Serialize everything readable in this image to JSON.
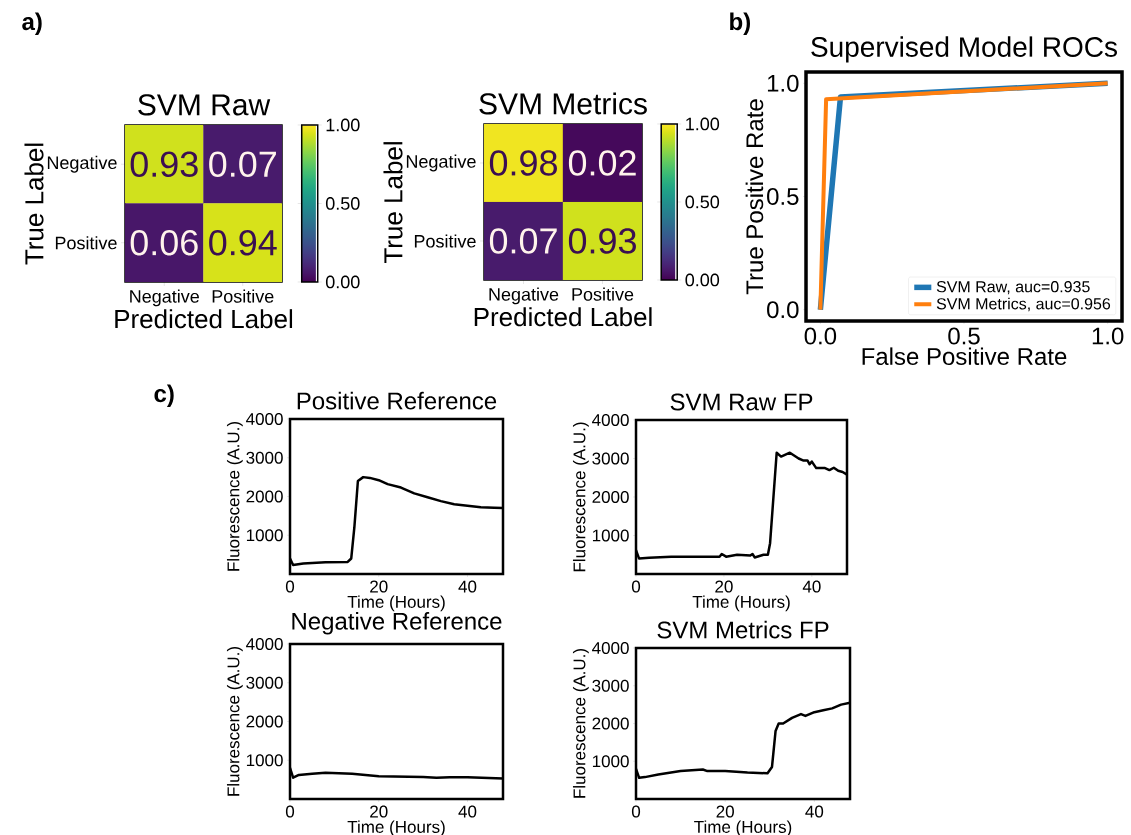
{
  "chart_data": [
    {
      "type": "heatmap",
      "title": "SVM Raw",
      "xlabel": "Predicted Label",
      "ylabel": "True Label",
      "categories": [
        "Negative",
        "Positive"
      ],
      "y_categories": [
        "Negative",
        "Positive"
      ],
      "cells": [
        [
          0.93,
          0.07
        ],
        [
          0.06,
          0.94
        ]
      ],
      "data_labels": true,
      "clim": [
        0,
        1
      ],
      "cticks": [
        {
          "value": 0,
          "label": "0.00"
        },
        {
          "value": 0.5,
          "label": "0.50"
        },
        {
          "value": 1,
          "label": "1.00"
        }
      ],
      "annotations": [
        "a)"
      ]
    },
    {
      "type": "heatmap",
      "title": "SVM Metrics",
      "xlabel": "Predicted Label",
      "ylabel": "True Label",
      "categories": [
        "Negative",
        "Positive"
      ],
      "y_categories": [
        "Negative",
        "Positive"
      ],
      "cells": [
        [
          0.98,
          0.02
        ],
        [
          0.07,
          0.93
        ]
      ],
      "data_labels": true,
      "clim": [
        0,
        1
      ],
      "cticks": [
        {
          "value": 0,
          "label": "0.00"
        },
        {
          "value": 0.5,
          "label": "0.50"
        },
        {
          "value": 1,
          "label": "1.00"
        }
      ]
    },
    {
      "type": "line",
      "title": "Supervised Model ROCs",
      "xlabel": "False Positive Rate",
      "ylabel": "True Positive Rate",
      "xlim": [
        -0.05,
        1.05
      ],
      "ylim": [
        -0.05,
        1.05
      ],
      "xticks": [
        {
          "value": 0,
          "label": "0.0"
        },
        {
          "value": 0.5,
          "label": "0.5"
        },
        {
          "value": 1,
          "label": "1.0"
        }
      ],
      "yticks": [
        {
          "value": 0,
          "label": "0.0"
        },
        {
          "value": 0.5,
          "label": "0.5"
        },
        {
          "value": 1,
          "label": "1.0"
        }
      ],
      "legend": "bottom right",
      "annotations": [
        "b)"
      ],
      "series": [
        {
          "name": "SVM Raw, auc=0.935",
          "color": "#1f77b4",
          "x": [
            0,
            0.07,
            1
          ],
          "values": [
            0,
            0.94,
            1
          ]
        },
        {
          "name": "SVM Metrics, auc=0.956",
          "color": "#ff7f0e",
          "x": [
            0,
            0.02,
            1
          ],
          "values": [
            0,
            0.93,
            1
          ]
        }
      ]
    },
    {
      "type": "line",
      "title": "Positive Reference",
      "xlabel": "Time (Hours)",
      "ylabel": "Fluorescence (A.U.)",
      "xlim": [
        0,
        48
      ],
      "ylim": [
        0,
        4000
      ],
      "xticks": [
        0,
        20,
        40
      ],
      "yticks": [
        1000,
        2000,
        3000,
        4000
      ],
      "color": "#000000",
      "annotations": [
        "c)"
      ],
      "x": [
        0,
        0.7,
        3,
        8,
        13,
        13.8,
        14.5,
        15.3,
        16.5,
        18,
        20,
        22,
        25,
        28,
        31,
        34,
        37,
        40,
        43,
        46,
        48
      ],
      "values": [
        400,
        230,
        270,
        300,
        310,
        400,
        1200,
        2400,
        2500,
        2480,
        2420,
        2320,
        2230,
        2080,
        1980,
        1880,
        1800,
        1760,
        1720,
        1710,
        1700
      ]
    },
    {
      "type": "line",
      "title": "SVM Raw FP",
      "xlabel": "Time (Hours)",
      "ylabel": "Fluorescence (A.U.)",
      "xlim": [
        0,
        48
      ],
      "ylim": [
        0,
        4000
      ],
      "xticks": [
        0,
        20,
        40
      ],
      "yticks": [
        1000,
        2000,
        3000,
        4000
      ],
      "color": "#000000",
      "x": [
        0,
        0.7,
        3,
        8,
        15,
        19,
        19.5,
        20.5,
        23,
        26,
        26.5,
        27,
        29,
        30,
        30.5,
        32,
        33,
        35,
        37,
        38,
        39,
        39.5,
        40,
        41,
        43,
        44,
        45,
        46,
        47,
        48
      ],
      "values": [
        620,
        400,
        420,
        450,
        450,
        450,
        520,
        450,
        500,
        480,
        520,
        430,
        500,
        500,
        800,
        3150,
        3050,
        3150,
        3000,
        2950,
        2950,
        2850,
        2920,
        2750,
        2750,
        2700,
        2760,
        2680,
        2650,
        2580
      ]
    },
    {
      "type": "line",
      "title": "Negative Reference",
      "xlabel": "Time (Hours)",
      "ylabel": "Fluorescence (A.U.)",
      "xlim": [
        0,
        48
      ],
      "ylim": [
        0,
        4000
      ],
      "xticks": [
        0,
        20,
        40
      ],
      "yticks": [
        1000,
        2000,
        3000,
        4000
      ],
      "color": "#000000",
      "x": [
        0,
        0.7,
        2,
        5,
        8,
        14,
        20,
        30,
        33,
        36,
        40,
        48
      ],
      "values": [
        800,
        550,
        620,
        650,
        680,
        650,
        590,
        570,
        550,
        560,
        560,
        530
      ]
    },
    {
      "type": "line",
      "title": "SVM Metrics FP",
      "xlabel": "Time (Hours)",
      "ylabel": "Fluorescence (A.U.)",
      "xlim": [
        0,
        48
      ],
      "ylim": [
        0,
        4000
      ],
      "xticks": [
        0,
        20,
        40
      ],
      "yticks": [
        1000,
        2000,
        3000,
        4000
      ],
      "color": "#000000",
      "x": [
        0,
        0.7,
        2,
        5,
        10,
        15,
        16,
        20,
        25,
        29.5,
        30.5,
        31.3,
        32,
        33,
        35,
        37,
        38,
        40,
        42,
        44,
        46,
        48
      ],
      "values": [
        800,
        560,
        580,
        650,
        740,
        780,
        740,
        740,
        700,
        680,
        850,
        1800,
        2000,
        2000,
        2150,
        2250,
        2200,
        2300,
        2350,
        2400,
        2500,
        2550
      ]
    }
  ]
}
